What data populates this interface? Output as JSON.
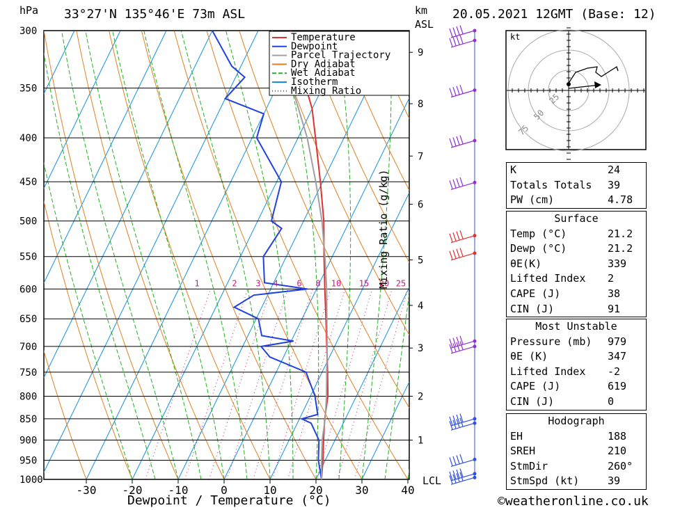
{
  "header": {
    "left_unit": "hPa",
    "location": "33°27'N 135°46'E 73m ASL",
    "km_unit_1": "km",
    "km_unit_2": "ASL",
    "valid": "20.05.2021 12GMT (Base: 12)"
  },
  "legend": [
    "Temperature",
    "Dewpoint",
    "Parcel Trajectory",
    "Dry Adiabat",
    "Wet Adiabat",
    "Isotherm",
    "Mixing Ratio"
  ],
  "colors": {
    "temperature": "#e03030",
    "dewpoint": "#2040e0",
    "parcel": "#a0a0a0",
    "dry_adiabat": "#e08020",
    "wet_adiabat": "#20b020",
    "isotherm": "#1090e0",
    "mixing_ratio": "#c02080",
    "wind_barb": "#9030d0"
  },
  "footer": {
    "xlabel": "Dewpoint / Temperature (°C)",
    "mixing_label": "Mixing Ratio (g/kg)",
    "lcl": "LCL",
    "credit": "©weatheronline.co.uk"
  },
  "hodograph": {
    "unit": "kt",
    "rings": [
      "25",
      "50",
      "75"
    ]
  },
  "chart_data": {
    "type": "line",
    "title": "33°27'N 135°46'E 73m ASL",
    "xlabel": "Dewpoint / Temperature (°C)",
    "ylabel": "hPa",
    "x_ticks": [
      "-30",
      "-20",
      "-10",
      "0",
      "10",
      "20",
      "30",
      "40"
    ],
    "pressure_ticks": [
      "300",
      "350",
      "400",
      "450",
      "500",
      "550",
      "600",
      "650",
      "700",
      "750",
      "800",
      "850",
      "900",
      "950",
      "1000"
    ],
    "km_ticks": [
      "1",
      "2",
      "3",
      "4",
      "5",
      "6",
      "7",
      "8",
      "9"
    ],
    "mixing_ratio_labels": [
      "1",
      "2",
      "3",
      "4",
      "6",
      "8",
      "10",
      "15",
      "20",
      "25"
    ],
    "series": [
      {
        "name": "Temperature",
        "points": [
          [
            1000,
            21.2
          ],
          [
            950,
            19.5
          ],
          [
            900,
            17.5
          ],
          [
            850,
            15.5
          ],
          [
            800,
            13.8
          ],
          [
            750,
            11.2
          ],
          [
            700,
            8.3
          ],
          [
            650,
            5.2
          ],
          [
            600,
            1.8
          ],
          [
            550,
            -1.8
          ],
          [
            500,
            -5.6
          ],
          [
            450,
            -10.5
          ],
          [
            400,
            -16.2
          ],
          [
            370,
            -20
          ],
          [
            350,
            -23.5
          ],
          [
            330,
            -27
          ],
          [
            300,
            -33
          ]
        ]
      },
      {
        "name": "Dewpoint",
        "points": [
          [
            1000,
            21.2
          ],
          [
            950,
            18.5
          ],
          [
            900,
            16.5
          ],
          [
            860,
            13
          ],
          [
            850,
            10.5
          ],
          [
            840,
            13.5
          ],
          [
            800,
            11
          ],
          [
            750,
            6.5
          ],
          [
            720,
            -3
          ],
          [
            700,
            -6
          ],
          [
            690,
            0.5
          ],
          [
            680,
            -7
          ],
          [
            650,
            -9.5
          ],
          [
            630,
            -16
          ],
          [
            610,
            -13
          ],
          [
            600,
            -2
          ],
          [
            590,
            -12
          ],
          [
            550,
            -15
          ],
          [
            510,
            -14
          ],
          [
            500,
            -17
          ],
          [
            450,
            -19
          ],
          [
            400,
            -29
          ],
          [
            375,
            -30
          ],
          [
            360,
            -40
          ],
          [
            340,
            -38
          ],
          [
            330,
            -42
          ],
          [
            300,
            -50
          ]
        ]
      },
      {
        "name": "Parcel Trajectory",
        "points": [
          [
            1000,
            21.2
          ],
          [
            950,
            19.2
          ],
          [
            900,
            17.2
          ],
          [
            850,
            15.6
          ],
          [
            800,
            13.5
          ],
          [
            750,
            11
          ],
          [
            700,
            8.4
          ],
          [
            650,
            5.4
          ],
          [
            600,
            2.2
          ],
          [
            550,
            -1.6
          ],
          [
            500,
            -6
          ],
          [
            450,
            -11.5
          ],
          [
            400,
            -18
          ],
          [
            350,
            -26.5
          ],
          [
            300,
            -37
          ]
        ]
      }
    ]
  },
  "indices": {
    "K": "24",
    "Totals Totals": "39",
    "PW (cm)": "4.78"
  },
  "table": {
    "block1": [
      [
        "K",
        "24"
      ],
      [
        "Totals Totals",
        "39"
      ],
      [
        "PW (cm)",
        "4.78"
      ]
    ],
    "surface_title": "Surface",
    "surface": [
      [
        "Temp (°C)",
        "21.2"
      ],
      [
        "Dewp (°C)",
        "21.2"
      ],
      [
        "θE(K)",
        "339"
      ],
      [
        "Lifted Index",
        "2"
      ],
      [
        "CAPE (J)",
        "38"
      ],
      [
        "CIN (J)",
        "91"
      ]
    ],
    "mu_title": "Most Unstable",
    "mu": [
      [
        "Pressure (mb)",
        "979"
      ],
      [
        "θE (K)",
        "347"
      ],
      [
        "Lifted Index",
        "-2"
      ],
      [
        "CAPE (J)",
        "619"
      ],
      [
        "CIN (J)",
        "0"
      ]
    ],
    "hodo_title": "Hodograph",
    "hodo": [
      [
        "EH",
        "188"
      ],
      [
        "SREH",
        "210"
      ],
      [
        "StmDir",
        "260°"
      ],
      [
        "StmSpd (kt)",
        "39"
      ]
    ]
  }
}
